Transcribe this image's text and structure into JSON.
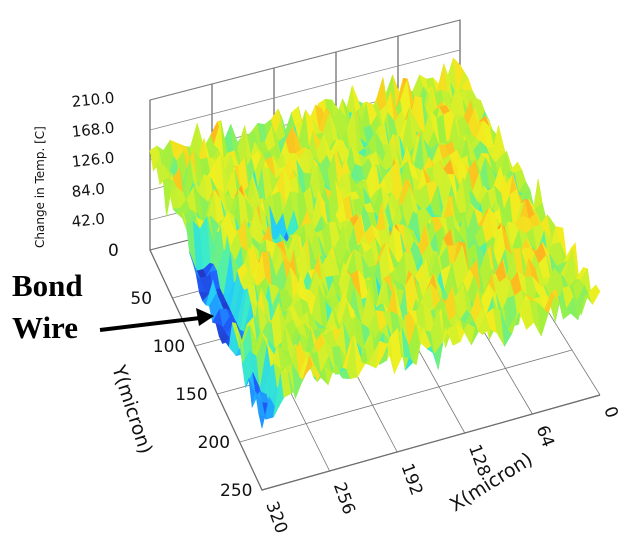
{
  "chart_data": {
    "type": "surface",
    "title": "",
    "xlabel": "X(micron)",
    "ylabel": "Y(micron)",
    "zlabel": "Change in Temp. [C]",
    "x_ticks": [
      "320",
      "256",
      "192",
      "128",
      "64",
      "0"
    ],
    "y_ticks": [
      "0",
      "50",
      "100",
      "150",
      "200",
      "250"
    ],
    "z_ticks": [
      "210.0",
      "168.0",
      "126.0",
      "84.0",
      "42.0"
    ],
    "xlim": [
      0,
      320
    ],
    "ylim": [
      0,
      250
    ],
    "zlim": [
      0,
      210
    ],
    "grid": true,
    "colormap": [
      "#2020a0",
      "#2060ff",
      "#20c8ff",
      "#40f0c0",
      "#a0f040",
      "#f0f020",
      "#ffb020",
      "#ff6010",
      "#e02010"
    ],
    "annotation": {
      "line1": "Bond",
      "line2": "Wire"
    }
  }
}
